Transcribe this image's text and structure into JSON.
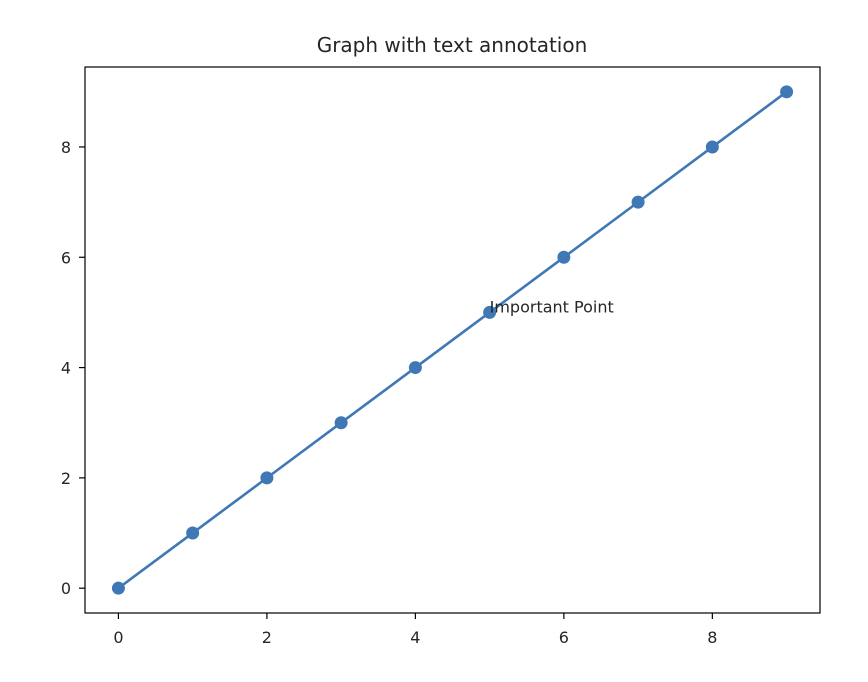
{
  "chart_data": {
    "type": "line",
    "title": "Graph with text annotation",
    "xlabel": "",
    "ylabel": "",
    "x": [
      0,
      1,
      2,
      3,
      4,
      5,
      6,
      7,
      8,
      9
    ],
    "series": [
      {
        "values": [
          0,
          1,
          2,
          3,
          4,
          5,
          6,
          7,
          8,
          9
        ],
        "color": "#3f78b5",
        "marker": "circle"
      }
    ],
    "xlim": [
      -0.45,
      9.45
    ],
    "ylim": [
      -0.45,
      9.45
    ],
    "xticks": [
      0,
      2,
      4,
      6,
      8
    ],
    "yticks": [
      0,
      2,
      4,
      6,
      8
    ],
    "grid": false,
    "annotations": [
      {
        "text": "Important Point",
        "x": 5,
        "y": 5
      }
    ]
  }
}
